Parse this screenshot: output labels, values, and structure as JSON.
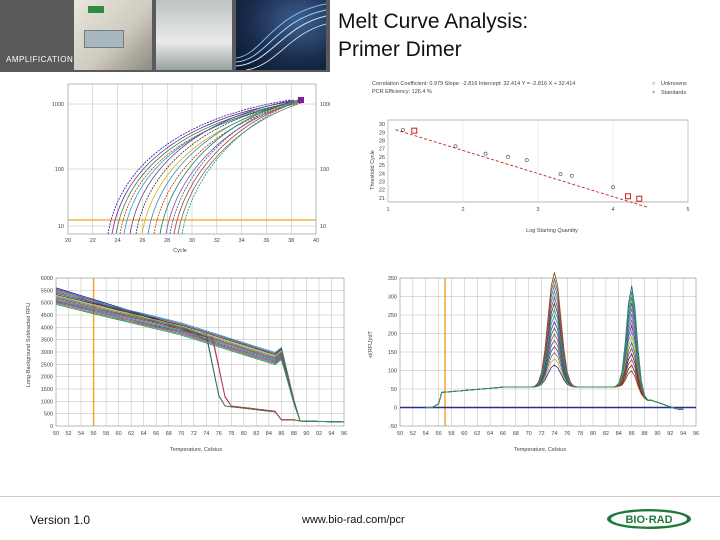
{
  "header": {
    "title_line1": "Melt Curve Analysis:",
    "title_line2": "Primer Dimer",
    "section_label": "AMPLIFICATION"
  },
  "footer": {
    "version": "Version 1.0",
    "website": "www.bio-rad.com/pcr",
    "logo_text": "BIO·RAD"
  },
  "colors": {
    "grid": "#b8b8b8",
    "threshold_orange": "#f4a020",
    "baseline_blue": "#2a2aa0",
    "std_curve_red": "#cc2020",
    "logo_green": "#1f7a3a"
  },
  "chart_data": [
    {
      "id": "amplification",
      "type": "line",
      "title": "",
      "xlabel": "Cycle",
      "ylabel": "",
      "x_ticks": [
        "20",
        "22",
        "24",
        "26",
        "28",
        "30",
        "32",
        "34",
        "36",
        "38",
        "40"
      ],
      "y_ticks": [
        "1000",
        "100",
        "10"
      ],
      "y_scale": "log",
      "series_count": 16
    },
    {
      "id": "standard_curve",
      "type": "scatter",
      "title": "",
      "xlabel": "Log Starting Quantity",
      "ylabel": "Threshold Cycle",
      "header_text": [
        "Correlation Coefficient: 0.979   Slope: -2.816   Intercept: 32.414   Y = -2.816 X + 32.414",
        "PCR Efficiency: 126.4 %"
      ],
      "legend": [
        "Unknowns",
        "Standards"
      ],
      "x_ticks": [
        "1",
        "2",
        "3",
        "4",
        "5"
      ],
      "y_ticks": [
        "30",
        "29",
        "28",
        "27",
        "26",
        "25",
        "24",
        "23",
        "22",
        "21"
      ],
      "xlim": [
        1,
        5
      ],
      "ylim": [
        20.5,
        30.5
      ],
      "points": [
        {
          "x": 1.35,
          "y": 29.2,
          "kind": "standard"
        },
        {
          "x": 1.2,
          "y": 29.3,
          "kind": "unknown"
        },
        {
          "x": 1.9,
          "y": 27.3,
          "kind": "unknown"
        },
        {
          "x": 2.3,
          "y": 26.4,
          "kind": "unknown"
        },
        {
          "x": 2.6,
          "y": 26.0,
          "kind": "unknown"
        },
        {
          "x": 2.85,
          "y": 25.6,
          "kind": "unknown"
        },
        {
          "x": 3.3,
          "y": 23.9,
          "kind": "unknown"
        },
        {
          "x": 3.45,
          "y": 23.7,
          "kind": "unknown"
        },
        {
          "x": 4.0,
          "y": 22.3,
          "kind": "unknown"
        },
        {
          "x": 4.2,
          "y": 21.2,
          "kind": "standard"
        },
        {
          "x": 4.35,
          "y": 20.9,
          "kind": "standard"
        }
      ],
      "fit": {
        "slope": -2.816,
        "intercept": 32.414
      }
    },
    {
      "id": "melt_curve",
      "type": "line",
      "title": "",
      "xlabel": "Temperature, Celsius",
      "ylabel": "Long-Background Subtracted RFU",
      "x_ticks": [
        "50",
        "52",
        "54",
        "56",
        "58",
        "60",
        "62",
        "64",
        "66",
        "68",
        "70",
        "72",
        "74",
        "76",
        "78",
        "80",
        "82",
        "84",
        "86",
        "88",
        "90",
        "92",
        "94",
        "96"
      ],
      "y_ticks": [
        "6000",
        "5500",
        "5000",
        "4500",
        "4000",
        "3500",
        "3000",
        "2500",
        "2000",
        "1500",
        "1000",
        "500",
        "0"
      ],
      "xlim": [
        50,
        96
      ],
      "ylim": [
        0,
        6000
      ],
      "vline_x": 56,
      "series_count": 16
    },
    {
      "id": "melt_peak",
      "type": "line",
      "title": "",
      "xlabel": "Temperature, Celsius",
      "ylabel": "-d(RFU)/dT",
      "x_ticks": [
        "50",
        "52",
        "54",
        "56",
        "58",
        "60",
        "62",
        "64",
        "66",
        "68",
        "70",
        "72",
        "74",
        "76",
        "78",
        "80",
        "82",
        "84",
        "86",
        "88",
        "90",
        "92",
        "94",
        "96"
      ],
      "y_ticks": [
        "350",
        "300",
        "250",
        "200",
        "150",
        "100",
        "50",
        "0",
        "-50"
      ],
      "xlim": [
        50,
        96
      ],
      "ylim": [
        -50,
        350
      ],
      "vline_x": 57,
      "baseline_y": 0,
      "peaks": [
        {
          "x": 74,
          "y_max": 310
        },
        {
          "x": 86,
          "y_max": 290
        }
      ],
      "series_count": 16
    }
  ]
}
